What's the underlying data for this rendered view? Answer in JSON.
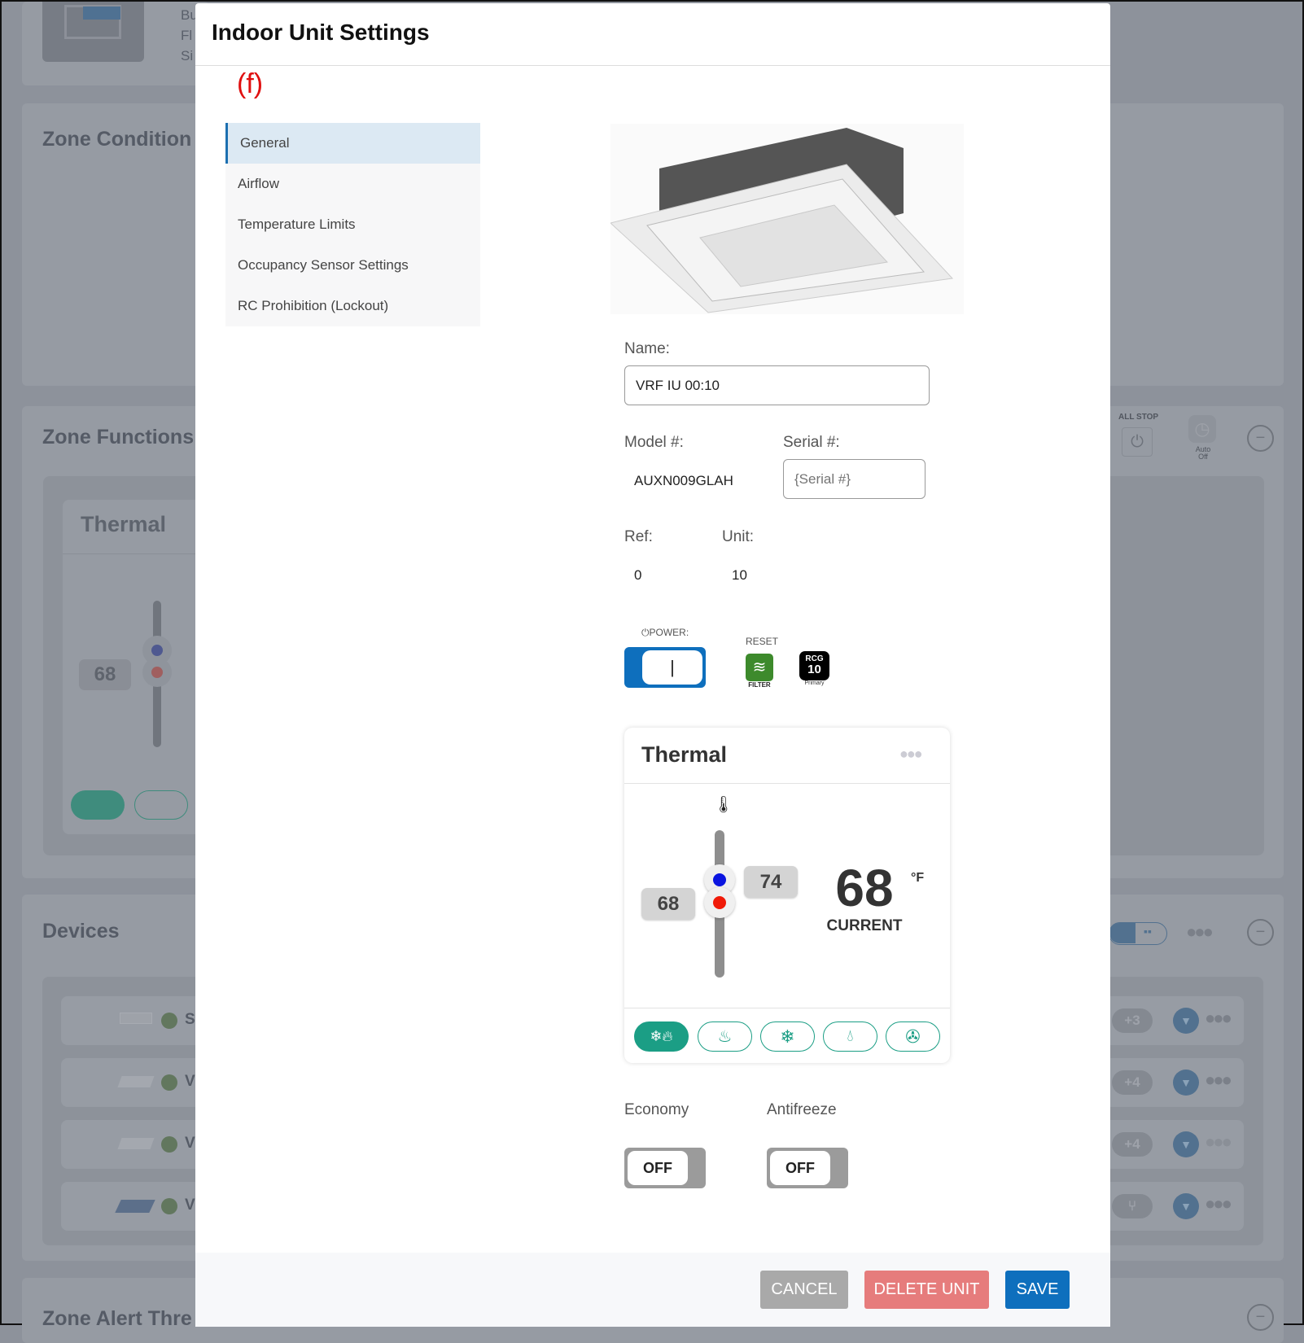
{
  "background": {
    "building_labels": [
      "Bu",
      "Fl",
      "Si"
    ],
    "zone_conditions_title": "Zone Condition",
    "zone_functions_title": "Zone Functions",
    "thermal_title": "Thermal",
    "thermal_setpoint": "68",
    "all_stop_label": "ALL STOP",
    "auto_off_label": "Auto Off",
    "devices_title": "Devices",
    "devices": [
      {
        "name_fragment": "S",
        "badge": "+3"
      },
      {
        "name_fragment": "V",
        "badge": "+4"
      },
      {
        "name_fragment": "V",
        "badge": "+4"
      },
      {
        "name_fragment": "V",
        "badge": ""
      }
    ],
    "zone_alert_title": "Zone Alert Thre"
  },
  "modal": {
    "title": "Indoor Unit Settings",
    "annotation": "(f)",
    "sidebar": [
      {
        "label": "General",
        "selected": true
      },
      {
        "label": "Airflow"
      },
      {
        "label": "Temperature Limits"
      },
      {
        "label": "Occupancy Sensor Settings"
      },
      {
        "label": "RC Prohibition (Lockout)"
      }
    ],
    "name_label": "Name:",
    "name_value": "VRF IU 00:10",
    "model_label": "Model #:",
    "model_value": "AUXN009GLAH",
    "serial_label": "Serial #:",
    "serial_placeholder": "{Serial #}",
    "ref_label": "Ref:",
    "ref_value": "0",
    "unit_label": "Unit:",
    "unit_value": "10",
    "power_label": "POWER:",
    "power_on": true,
    "power_knob_text": "|",
    "reset_label": "RESET",
    "filter_label": "FILTER",
    "rcg_top": "RCG",
    "rcg_num": "10",
    "rcg_sub": "Primary",
    "thermal": {
      "title": "Thermal",
      "cool_setpoint": "74",
      "heat_setpoint": "68",
      "current": "68",
      "current_label": "CURRENT",
      "unit": "°F",
      "modes": [
        "auto",
        "heat",
        "cool",
        "dry",
        "fan"
      ],
      "active_mode": "auto",
      "accent": "#1b9e85"
    },
    "economy_label": "Economy",
    "economy_value": "OFF",
    "antifreeze_label": "Antifreeze",
    "antifreeze_value": "OFF",
    "cancel_label": "CANCEL",
    "delete_label": "DELETE UNIT",
    "save_label": "SAVE",
    "colors": {
      "primary": "#0e6fbd",
      "danger": "#e67c7c",
      "neutral": "#a9a9a9"
    }
  }
}
